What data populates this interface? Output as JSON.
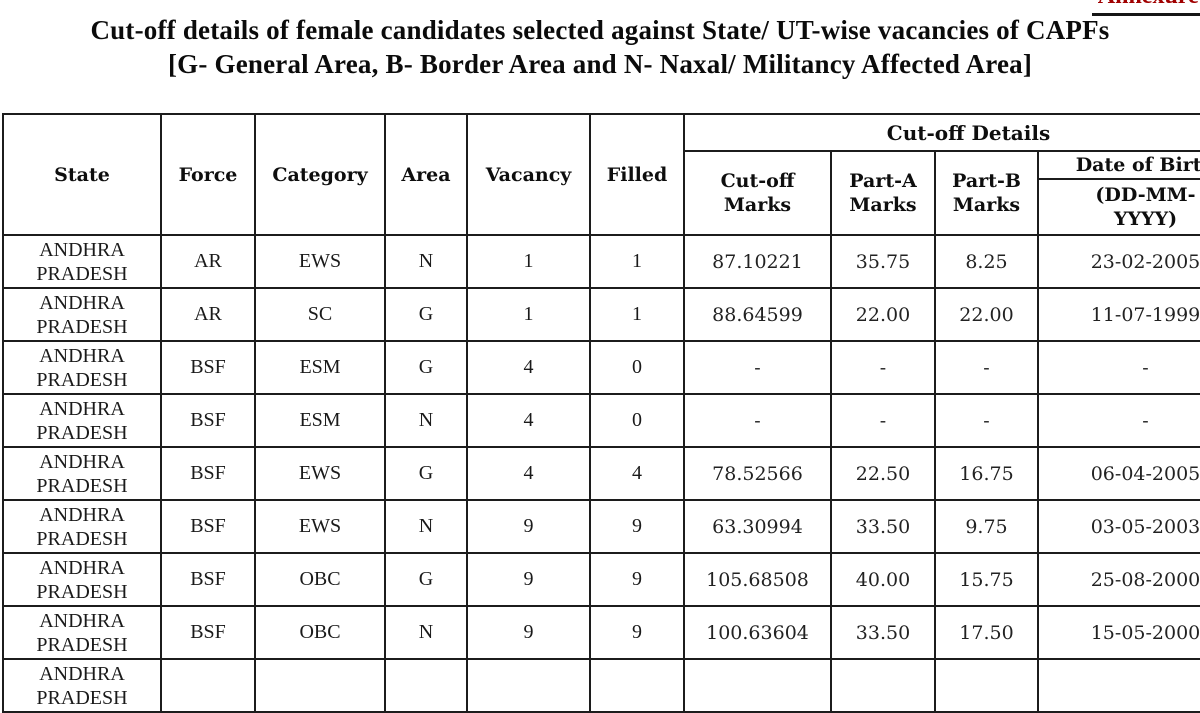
{
  "annexure_label": "Annexure-I",
  "title": {
    "line1": "Cut-off details of female candidates selected against State/ UT-wise vacancies of CAPFs",
    "line2": "[G- General Area, B- Border Area and N- Naxal/ Militancy Affected Area]"
  },
  "table": {
    "headers": {
      "state": "State",
      "force": "Force",
      "category": "Category",
      "area": "Area",
      "vacancy": "Vacancy",
      "filled": "Filled",
      "cutoff_details": "Cut-off Details",
      "cutoff_marks": "Cut-off Marks",
      "part_a_marks": "Part-A Marks",
      "part_b_marks": "Part-B Marks",
      "date_of_birth": "Date of Birth",
      "dob_format": "(DD-MM-YYYY)"
    },
    "rows": [
      {
        "state": "ANDHRA PRADESH",
        "force": "AR",
        "category": "EWS",
        "area": "N",
        "vacancy": "1",
        "filled": "1",
        "cutoff_marks": "87.10221",
        "part_a_marks": "35.75",
        "part_b_marks": "8.25",
        "dob": "23-02-2005"
      },
      {
        "state": "ANDHRA PRADESH",
        "force": "AR",
        "category": "SC",
        "area": "G",
        "vacancy": "1",
        "filled": "1",
        "cutoff_marks": "88.64599",
        "part_a_marks": "22.00",
        "part_b_marks": "22.00",
        "dob": "11-07-1999"
      },
      {
        "state": "ANDHRA PRADESH",
        "force": "BSF",
        "category": "ESM",
        "area": "G",
        "vacancy": "4",
        "filled": "0",
        "cutoff_marks": "-",
        "part_a_marks": "-",
        "part_b_marks": "-",
        "dob": "-"
      },
      {
        "state": "ANDHRA PRADESH",
        "force": "BSF",
        "category": "ESM",
        "area": "N",
        "vacancy": "4",
        "filled": "0",
        "cutoff_marks": "-",
        "part_a_marks": "-",
        "part_b_marks": "-",
        "dob": "-"
      },
      {
        "state": "ANDHRA PRADESH",
        "force": "BSF",
        "category": "EWS",
        "area": "G",
        "vacancy": "4",
        "filled": "4",
        "cutoff_marks": "78.52566",
        "part_a_marks": "22.50",
        "part_b_marks": "16.75",
        "dob": "06-04-2005"
      },
      {
        "state": "ANDHRA PRADESH",
        "force": "BSF",
        "category": "EWS",
        "area": "N",
        "vacancy": "9",
        "filled": "9",
        "cutoff_marks": "63.30994",
        "part_a_marks": "33.50",
        "part_b_marks": "9.75",
        "dob": "03-05-2003"
      },
      {
        "state": "ANDHRA PRADESH",
        "force": "BSF",
        "category": "OBC",
        "area": "G",
        "vacancy": "9",
        "filled": "9",
        "cutoff_marks": "105.68508",
        "part_a_marks": "40.00",
        "part_b_marks": "15.75",
        "dob": "25-08-2000"
      },
      {
        "state": "ANDHRA PRADESH",
        "force": "BSF",
        "category": "OBC",
        "area": "N",
        "vacancy": "9",
        "filled": "9",
        "cutoff_marks": "100.63604",
        "part_a_marks": "33.50",
        "part_b_marks": "17.50",
        "dob": "15-05-2000"
      },
      {
        "state": "ANDHRA PRADESH",
        "force": "",
        "category": "",
        "area": "",
        "vacancy": "",
        "filled": "",
        "cutoff_marks": "",
        "part_a_marks": "",
        "part_b_marks": "",
        "dob": ""
      }
    ]
  },
  "colors": {
    "accent_red": "#a00000",
    "border": "#1c1c1c",
    "text": "#111111",
    "background": "#ffffff"
  }
}
